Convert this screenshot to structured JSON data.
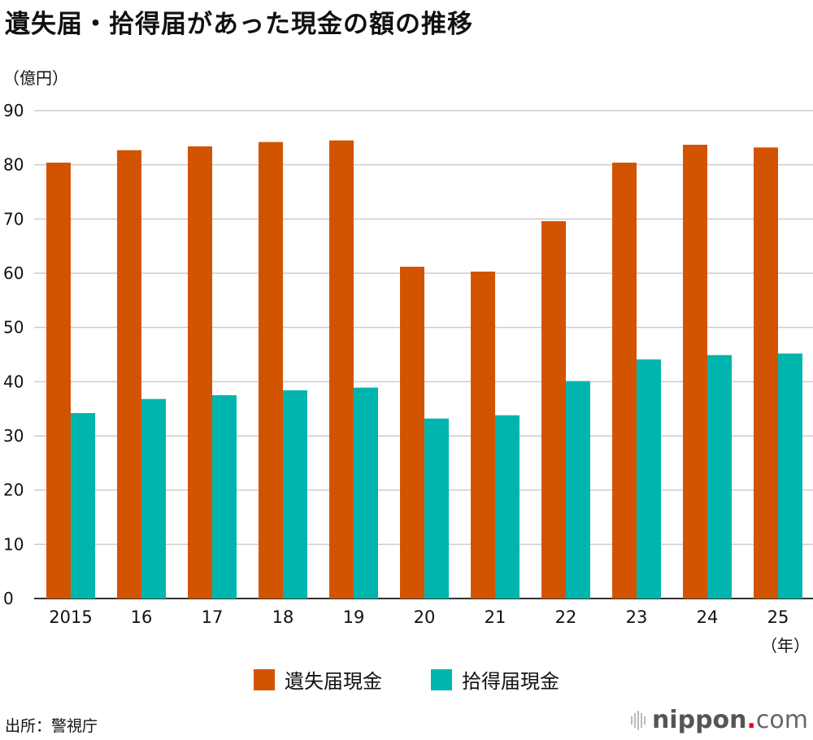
{
  "chart_data": {
    "type": "bar",
    "title": "遺失届・拾得届があった現金の額の推移",
    "ylabel": "（億円）",
    "xlabel": "（年）",
    "ylim": [
      0,
      90
    ],
    "yticks": [
      0,
      10,
      20,
      30,
      40,
      50,
      60,
      70,
      80,
      90
    ],
    "grid": true,
    "legend_position": "bottom",
    "categories": [
      "2015",
      "16",
      "17",
      "18",
      "19",
      "20",
      "21",
      "22",
      "23",
      "24",
      "25"
    ],
    "series": [
      {
        "name": "遺失届現金",
        "color": "#d35400",
        "values": [
          80.4,
          82.7,
          83.4,
          84.2,
          84.5,
          61.2,
          60.3,
          69.6,
          80.4,
          83.7,
          83.2
        ]
      },
      {
        "name": "拾得届現金",
        "color": "#00b5ad",
        "values": [
          34.2,
          36.8,
          37.5,
          38.4,
          38.9,
          33.2,
          33.8,
          40.1,
          44.1,
          44.9,
          45.2
        ]
      }
    ]
  },
  "source": "出所：警視庁",
  "logo": {
    "brand": "nippon",
    "dot": ".",
    "suffix": "com"
  }
}
